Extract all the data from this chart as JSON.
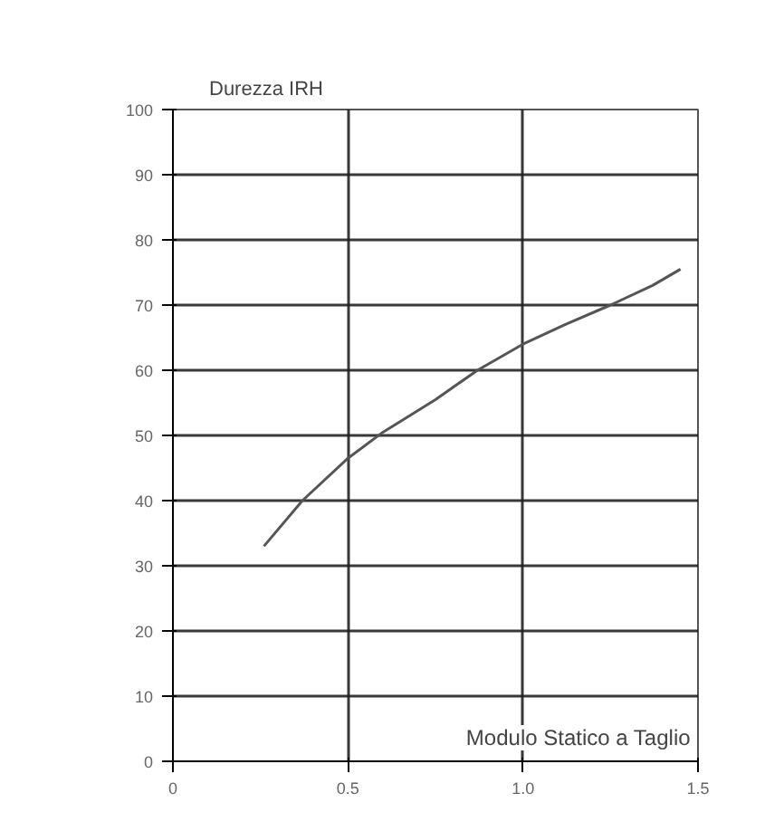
{
  "chart_data": {
    "type": "line",
    "xlabel": "Modulo Statico a Taglio",
    "ylabel": "Durezza IRH",
    "x": [
      0.26,
      0.37,
      0.5,
      0.6,
      0.75,
      0.87,
      1.0,
      1.12,
      1.25,
      1.37,
      1.45
    ],
    "series": [
      {
        "color": "#555555",
        "values": [
          33,
          40,
          46.5,
          50.5,
          55.5,
          60,
          64,
          67,
          70,
          73,
          75.5
        ]
      }
    ],
    "xlim": [
      0,
      1.5
    ],
    "ylim": [
      0,
      100
    ],
    "xticks": [
      0,
      0.5,
      {
        "value": 1,
        "label": "1.0"
      },
      1.5
    ],
    "yticks": [
      0,
      10,
      20,
      30,
      40,
      50,
      60,
      70,
      80,
      90,
      100
    ],
    "grid": true,
    "marker": "none",
    "line_style": "solid"
  }
}
